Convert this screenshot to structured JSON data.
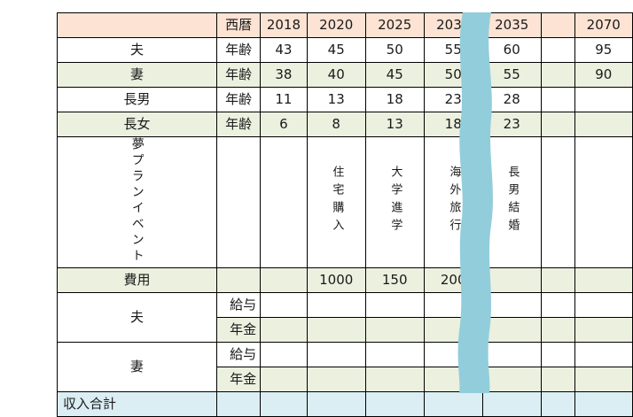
{
  "header": {
    "label": "西暦",
    "years": [
      "2018",
      "2020",
      "2025",
      "2030",
      "2035",
      "",
      "2070"
    ]
  },
  "rows": {
    "husband_age": {
      "person": "夫",
      "kind": "年齢",
      "values": [
        "43",
        "45",
        "50",
        "55",
        "60",
        "",
        "95"
      ]
    },
    "wife_age": {
      "person": "妻",
      "kind": "年齢",
      "values": [
        "38",
        "40",
        "45",
        "50",
        "55",
        "",
        "90"
      ]
    },
    "son_age": {
      "person": "長男",
      "kind": "年齢",
      "values": [
        "11",
        "13",
        "18",
        "23",
        "28",
        "",
        ""
      ]
    },
    "daughter_age": {
      "person": "長女",
      "kind": "年齢",
      "values": [
        "6",
        "8",
        "13",
        "18",
        "23",
        "",
        ""
      ]
    }
  },
  "events": {
    "label": "夢プランイベント",
    "items": [
      "",
      "住宅購入",
      "大学進学",
      "海外旅行",
      "長男結婚",
      "",
      ""
    ]
  },
  "costs": {
    "label": "費用",
    "values": [
      "",
      "1000",
      "150",
      "200",
      "",
      "",
      ""
    ]
  },
  "income": {
    "husband": {
      "person": "夫",
      "salary": "給与",
      "pension": "年金"
    },
    "wife": {
      "person": "妻",
      "salary": "給与",
      "pension": "年金"
    },
    "total_label": "収入合計"
  },
  "colors": {
    "header_bg": "#fde3d4",
    "band_green": "#ebf0df",
    "total_blue": "#dbeef3",
    "river": "#92cddc"
  }
}
